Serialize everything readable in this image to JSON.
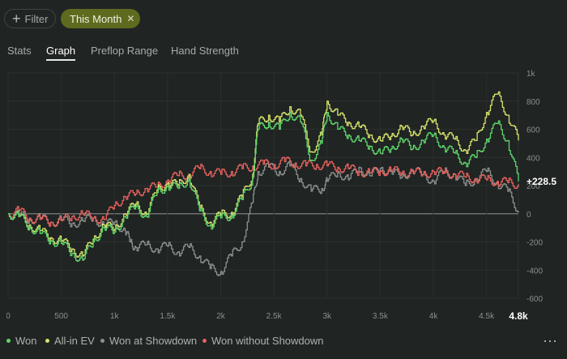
{
  "filters": {
    "filter_label": "Filter",
    "active_filter_label": "This Month"
  },
  "tabs": [
    {
      "label": "Stats",
      "active": false
    },
    {
      "label": "Graph",
      "active": true
    },
    {
      "label": "Preflop Range",
      "active": false
    },
    {
      "label": "Hand Strength",
      "active": false
    }
  ],
  "chart_data": {
    "type": "line",
    "x_ticks": [
      "0",
      "500",
      "1k",
      "1.5k",
      "2k",
      "2.5k",
      "3k",
      "3.5k",
      "4k",
      "4.5k"
    ],
    "x_tick_values": [
      0,
      500,
      1000,
      1500,
      2000,
      2500,
      3000,
      3500,
      4000,
      4500
    ],
    "x_end_label": "4.8k",
    "y_ticks": [
      "1k",
      "800",
      "600",
      "400",
      "200",
      "0",
      "-200",
      "-400",
      "-600"
    ],
    "y_tick_values": [
      1000,
      800,
      600,
      400,
      200,
      0,
      -200,
      -400,
      -600
    ],
    "xlim": [
      0,
      4800
    ],
    "ylim": [
      -600,
      1000
    ],
    "grid": true,
    "final_value_label": "+228.5",
    "series": [
      {
        "name": "Won",
        "color": "#5fd86b",
        "points": [
          [
            0,
            0
          ],
          [
            100,
            -20
          ],
          [
            200,
            -90
          ],
          [
            300,
            -140
          ],
          [
            400,
            -190
          ],
          [
            500,
            -210
          ],
          [
            600,
            -280
          ],
          [
            700,
            -330
          ],
          [
            800,
            -200
          ],
          [
            900,
            -100
          ],
          [
            1000,
            -130
          ],
          [
            1100,
            -20
          ],
          [
            1200,
            50
          ],
          [
            1300,
            -20
          ],
          [
            1400,
            150
          ],
          [
            1500,
            200
          ],
          [
            1600,
            180
          ],
          [
            1700,
            250
          ],
          [
            1800,
            20
          ],
          [
            1900,
            -80
          ],
          [
            2000,
            -30
          ],
          [
            2100,
            -10
          ],
          [
            2200,
            100
          ],
          [
            2300,
            250
          ],
          [
            2350,
            600
          ],
          [
            2450,
            650
          ],
          [
            2550,
            600
          ],
          [
            2650,
            720
          ],
          [
            2750,
            650
          ],
          [
            2850,
            380
          ],
          [
            2950,
            500
          ],
          [
            3000,
            720
          ],
          [
            3100,
            600
          ],
          [
            3200,
            560
          ],
          [
            3300,
            520
          ],
          [
            3400,
            480
          ],
          [
            3500,
            430
          ],
          [
            3600,
            460
          ],
          [
            3700,
            530
          ],
          [
            3800,
            460
          ],
          [
            3900,
            520
          ],
          [
            4000,
            560
          ],
          [
            4100,
            470
          ],
          [
            4200,
            430
          ],
          [
            4300,
            360
          ],
          [
            4400,
            400
          ],
          [
            4500,
            530
          ],
          [
            4600,
            640
          ],
          [
            4700,
            520
          ],
          [
            4800,
            230
          ]
        ]
      },
      {
        "name": "All-in EV",
        "color": "#d8e46a",
        "points": [
          [
            0,
            0
          ],
          [
            100,
            -20
          ],
          [
            200,
            -80
          ],
          [
            300,
            -120
          ],
          [
            400,
            -170
          ],
          [
            500,
            -190
          ],
          [
            600,
            -250
          ],
          [
            700,
            -300
          ],
          [
            800,
            -180
          ],
          [
            900,
            -80
          ],
          [
            1000,
            -110
          ],
          [
            1100,
            0
          ],
          [
            1200,
            70
          ],
          [
            1300,
            0
          ],
          [
            1400,
            170
          ],
          [
            1500,
            220
          ],
          [
            1600,
            200
          ],
          [
            1700,
            280
          ],
          [
            1800,
            40
          ],
          [
            1900,
            -60
          ],
          [
            2000,
            -10
          ],
          [
            2100,
            10
          ],
          [
            2200,
            120
          ],
          [
            2300,
            280
          ],
          [
            2350,
            640
          ],
          [
            2450,
            700
          ],
          [
            2550,
            650
          ],
          [
            2650,
            760
          ],
          [
            2750,
            700
          ],
          [
            2850,
            440
          ],
          [
            2950,
            560
          ],
          [
            3000,
            800
          ],
          [
            3100,
            700
          ],
          [
            3200,
            650
          ],
          [
            3300,
            620
          ],
          [
            3400,
            560
          ],
          [
            3500,
            520
          ],
          [
            3600,
            550
          ],
          [
            3700,
            620
          ],
          [
            3800,
            560
          ],
          [
            3900,
            620
          ],
          [
            4000,
            660
          ],
          [
            4100,
            560
          ],
          [
            4200,
            530
          ],
          [
            4300,
            450
          ],
          [
            4400,
            520
          ],
          [
            4500,
            720
          ],
          [
            4600,
            850
          ],
          [
            4700,
            700
          ],
          [
            4800,
            520
          ]
        ]
      },
      {
        "name": "Won at Showdown",
        "color": "#8d918e",
        "points": [
          [
            0,
            0
          ],
          [
            100,
            -10
          ],
          [
            200,
            -40
          ],
          [
            300,
            -30
          ],
          [
            400,
            -60
          ],
          [
            500,
            -40
          ],
          [
            600,
            -70
          ],
          [
            700,
            -50
          ],
          [
            800,
            -30
          ],
          [
            900,
            -80
          ],
          [
            1000,
            -60
          ],
          [
            1100,
            -120
          ],
          [
            1150,
            -200
          ],
          [
            1200,
            -240
          ],
          [
            1300,
            -220
          ],
          [
            1400,
            -250
          ],
          [
            1500,
            -230
          ],
          [
            1600,
            -270
          ],
          [
            1700,
            -240
          ],
          [
            1800,
            -300
          ],
          [
            1900,
            -390
          ],
          [
            2000,
            -410
          ],
          [
            2100,
            -300
          ],
          [
            2200,
            -200
          ],
          [
            2300,
            80
          ],
          [
            2350,
            300
          ],
          [
            2450,
            330
          ],
          [
            2550,
            300
          ],
          [
            2650,
            340
          ],
          [
            2750,
            250
          ],
          [
            2850,
            160
          ],
          [
            2950,
            180
          ],
          [
            3000,
            230
          ],
          [
            3100,
            300
          ],
          [
            3200,
            240
          ],
          [
            3300,
            330
          ],
          [
            3400,
            270
          ],
          [
            3500,
            320
          ],
          [
            3600,
            300
          ],
          [
            3700,
            260
          ],
          [
            3800,
            310
          ],
          [
            3900,
            280
          ],
          [
            4000,
            230
          ],
          [
            4100,
            300
          ],
          [
            4200,
            280
          ],
          [
            4300,
            200
          ],
          [
            4400,
            250
          ],
          [
            4500,
            300
          ],
          [
            4600,
            220
          ],
          [
            4700,
            160
          ],
          [
            4800,
            20
          ]
        ]
      },
      {
        "name": "Won without Showdown",
        "color": "#e8625f",
        "points": [
          [
            0,
            0
          ],
          [
            100,
            20
          ],
          [
            200,
            -30
          ],
          [
            300,
            -40
          ],
          [
            400,
            -60
          ],
          [
            500,
            -50
          ],
          [
            600,
            -20
          ],
          [
            700,
            0
          ],
          [
            800,
            -30
          ],
          [
            900,
            -40
          ],
          [
            1000,
            60
          ],
          [
            1100,
            120
          ],
          [
            1200,
            140
          ],
          [
            1300,
            180
          ],
          [
            1400,
            190
          ],
          [
            1500,
            240
          ],
          [
            1600,
            270
          ],
          [
            1700,
            280
          ],
          [
            1800,
            320
          ],
          [
            1900,
            300
          ],
          [
            2000,
            280
          ],
          [
            2100,
            300
          ],
          [
            2200,
            320
          ],
          [
            2300,
            340
          ],
          [
            2400,
            350
          ],
          [
            2500,
            350
          ],
          [
            2600,
            370
          ],
          [
            2700,
            360
          ],
          [
            2800,
            340
          ],
          [
            2900,
            350
          ],
          [
            3000,
            340
          ],
          [
            3100,
            330
          ],
          [
            3200,
            320
          ],
          [
            3300,
            300
          ],
          [
            3400,
            290
          ],
          [
            3500,
            300
          ],
          [
            3600,
            310
          ],
          [
            3700,
            290
          ],
          [
            3800,
            300
          ],
          [
            3900,
            280
          ],
          [
            4000,
            300
          ],
          [
            4100,
            290
          ],
          [
            4200,
            280
          ],
          [
            4300,
            260
          ],
          [
            4400,
            250
          ],
          [
            4500,
            240
          ],
          [
            4600,
            230
          ],
          [
            4700,
            220
          ],
          [
            4800,
            210
          ]
        ]
      }
    ]
  }
}
